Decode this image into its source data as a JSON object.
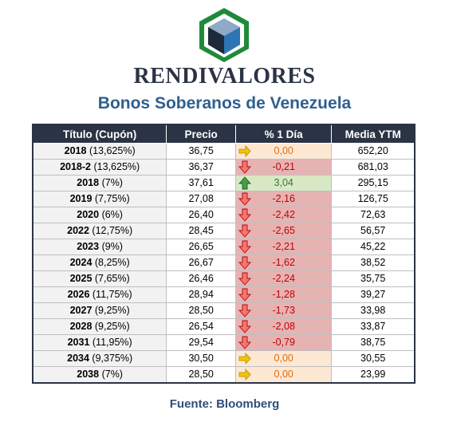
{
  "brand": "RENDIVALORES",
  "subtitle": "Bonos Soberanos de Venezuela",
  "table": {
    "headers": [
      "Título (Cupón)",
      "Precio",
      "% 1 Día",
      "Media YTM"
    ],
    "rows": [
      {
        "year": "2018",
        "coupon": "(13,625%)",
        "price": "36,75",
        "change": "0,00",
        "trend": "flat",
        "ytm": "652,20"
      },
      {
        "year": "2018-2",
        "coupon": "(13,625%)",
        "price": "36,37",
        "change": "-0,21",
        "trend": "down",
        "ytm": "681,03"
      },
      {
        "year": "2018",
        "coupon": "(7%)",
        "price": "37,61",
        "change": "3,04",
        "trend": "up",
        "ytm": "295,15"
      },
      {
        "year": "2019",
        "coupon": "(7,75%)",
        "price": "27,08",
        "change": "-2,16",
        "trend": "down",
        "ytm": "126,75"
      },
      {
        "year": "2020",
        "coupon": "(6%)",
        "price": "26,40",
        "change": "-2,42",
        "trend": "down",
        "ytm": "72,63"
      },
      {
        "year": "2022",
        "coupon": "(12,75%)",
        "price": "28,45",
        "change": "-2,65",
        "trend": "down",
        "ytm": "56,57"
      },
      {
        "year": "2023",
        "coupon": "(9%)",
        "price": "26,65",
        "change": "-2,21",
        "trend": "down",
        "ytm": "45,22"
      },
      {
        "year": "2024",
        "coupon": "(8,25%)",
        "price": "26,67",
        "change": "-1,62",
        "trend": "down",
        "ytm": "38,52"
      },
      {
        "year": "2025",
        "coupon": "(7,65%)",
        "price": "26,46",
        "change": "-2,24",
        "trend": "down",
        "ytm": "35,75"
      },
      {
        "year": "2026",
        "coupon": "(11,75%)",
        "price": "28,94",
        "change": "-1,28",
        "trend": "down",
        "ytm": "39,27"
      },
      {
        "year": "2027",
        "coupon": "(9,25%)",
        "price": "28,50",
        "change": "-1,73",
        "trend": "down",
        "ytm": "33,98"
      },
      {
        "year": "2028",
        "coupon": "(9,25%)",
        "price": "26,54",
        "change": "-2,08",
        "trend": "down",
        "ytm": "33,87"
      },
      {
        "year": "2031",
        "coupon": "(11,95%)",
        "price": "29,54",
        "change": "-0,79",
        "trend": "down",
        "ytm": "38,75"
      },
      {
        "year": "2034",
        "coupon": "(9,375%)",
        "price": "30,50",
        "change": "0,00",
        "trend": "flat",
        "ytm": "30,55"
      },
      {
        "year": "2038",
        "coupon": "(7%)",
        "price": "28,50",
        "change": "0,00",
        "trend": "flat",
        "ytm": "23,99"
      }
    ]
  },
  "source": "Fuente: Bloomberg",
  "colors": {
    "header_bg": "#2b3445",
    "subtitle": "#2f5f8f",
    "down_bg": "#e6b3b3",
    "down_text": "#c00000",
    "up_bg": "#d8e8c5",
    "up_text": "#2e7d32",
    "flat_bg": "#fde8d4",
    "flat_text": "#e36c09",
    "logo_green": "#1f8a3a",
    "logo_blue": "#2e75b6"
  },
  "icons": {
    "flat": "arrow-right-icon",
    "down": "arrow-down-icon",
    "up": "arrow-up-icon"
  }
}
